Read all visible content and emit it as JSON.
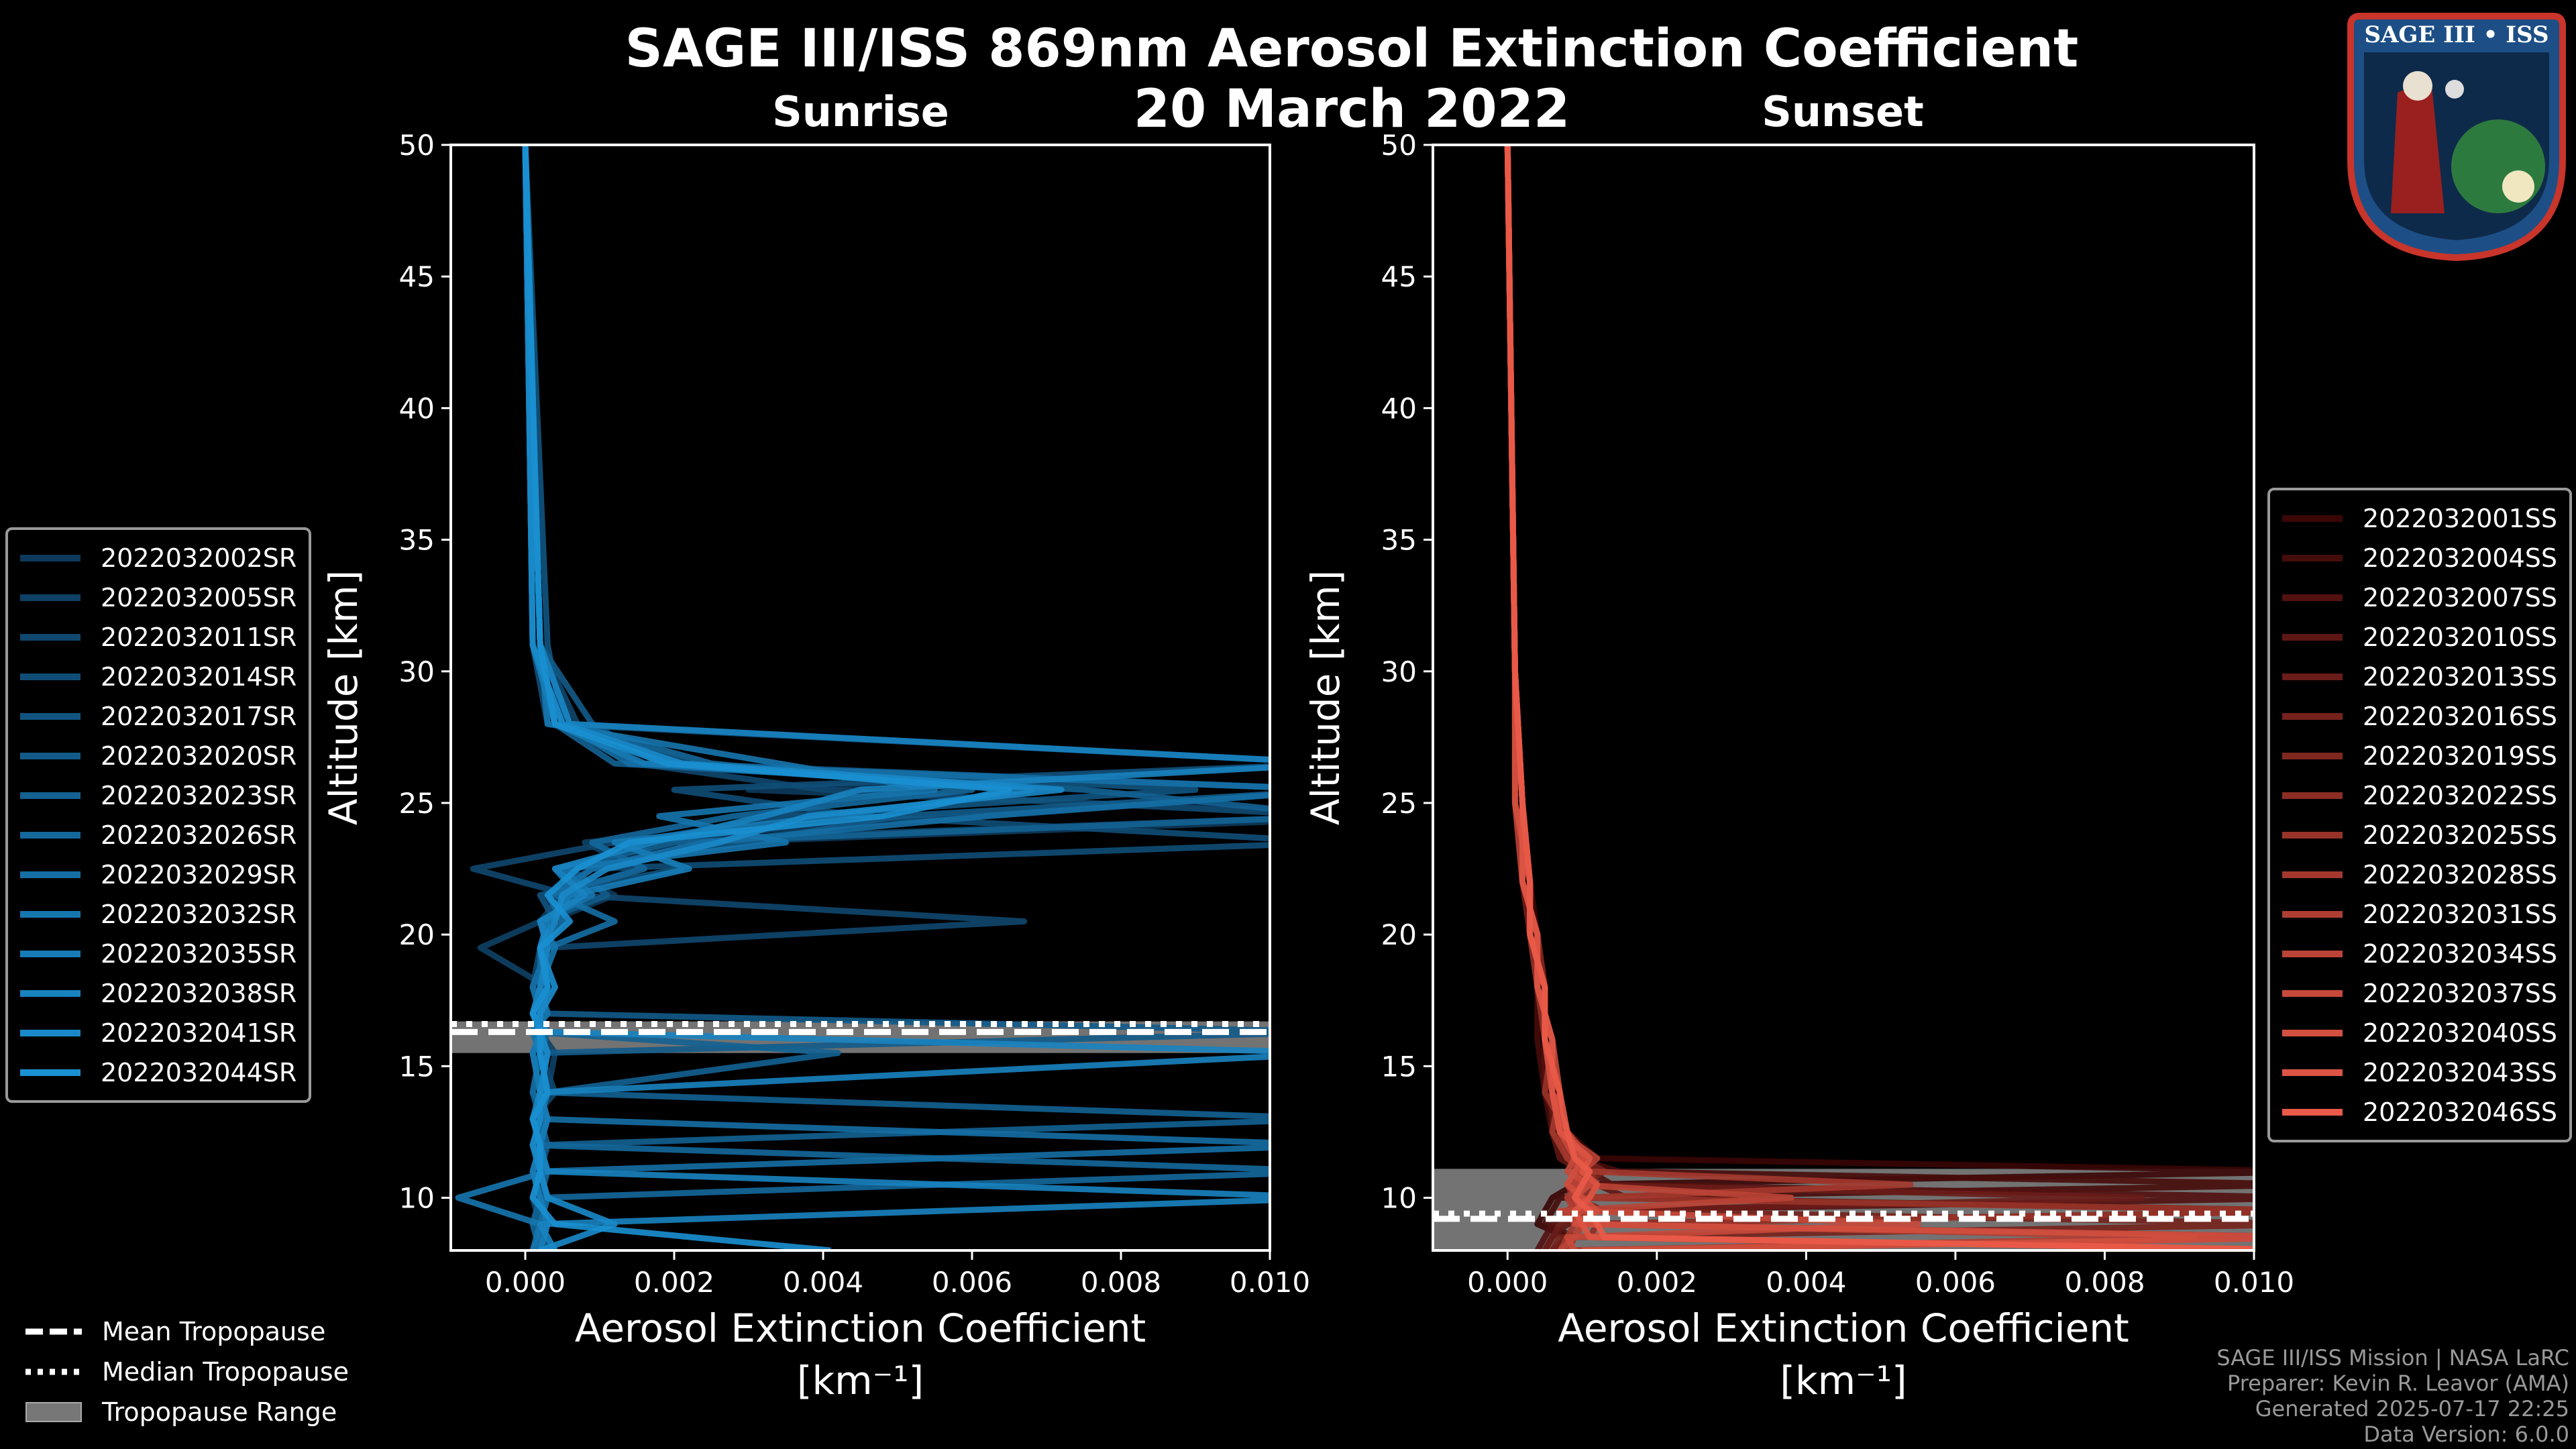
{
  "title_line1": "SAGE III/ISS 869nm Aerosol Extinction Coefficient",
  "title_line2": "20 March 2022",
  "logo_text": "SAGE III • ISS",
  "footer": [
    "SAGE III/ISS Mission | NASA LaRC",
    "Preparer: Kevin R. Leavor (AMA)",
    "Generated 2025-07-17 22:25",
    "Data Version: 6.0.0"
  ],
  "bottom_legend": {
    "mean": "Mean Tropopause",
    "median": "Median Tropopause",
    "range": "Tropopause Range"
  },
  "chart_data": [
    {
      "type": "line",
      "title": "Sunrise",
      "xlabel": "Aerosol Extinction Coefficient",
      "xunits": "[km⁻¹]",
      "ylabel": "Altitude [km]",
      "xlim": [
        -0.001,
        0.01
      ],
      "ylim": [
        8,
        50
      ],
      "xticks": [
        "0.000",
        "0.002",
        "0.004",
        "0.006",
        "0.008",
        "0.010"
      ],
      "xtick_values": [
        0,
        0.002,
        0.004,
        0.006,
        0.008,
        0.01
      ],
      "yticks": [
        10,
        15,
        20,
        25,
        30,
        35,
        40,
        45,
        50
      ],
      "legend_position": "left-outside",
      "color_start": "#0d3a5c",
      "color_end": "#1a90d2",
      "tropopause": {
        "mean": 16.3,
        "median": 16.6,
        "range": [
          15.5,
          16.7
        ]
      },
      "altitudes": [
        50,
        31,
        28,
        26.5,
        25.5,
        24.5,
        23.5,
        22.5,
        21.5,
        20.5,
        19.5,
        18,
        17,
        16.3,
        15.5,
        14,
        13,
        12,
        11,
        10,
        9,
        8
      ],
      "series": [
        {
          "name": "2022032002SR",
          "values": [
            0,
            0.0002,
            0.0006,
            0.011,
            0.003,
            0.012,
            0.0025,
            0.0004,
            0.0012,
            0.0003,
            0.0002,
            0.0004,
            0.0002,
            0.0003,
            0.0001,
            0.0002,
            0.0003,
            0.0002,
            0.0001,
            0.0002,
            0.0003,
            0.0002
          ]
        },
        {
          "name": "2022032005SR",
          "values": [
            0,
            0.0001,
            0.0004,
            0.002,
            0.011,
            0.006,
            0.0008,
            0.0015,
            0.0005,
            0.0002,
            -0.0006,
            0.0003,
            0.0001,
            0.0002,
            0.0004,
            0.0003,
            0.0002,
            0.0001,
            0.0002,
            0.0003,
            0.0001,
            0.0002
          ]
        },
        {
          "name": "2022032011SR",
          "values": [
            0,
            0.0002,
            0.0007,
            0.0015,
            0.004,
            0.011,
            0.0012,
            -0.0007,
            0.0006,
            0.0067,
            0.0003,
            0.0002,
            0.0003,
            0.0001,
            0.0002,
            0.0004,
            0.0001,
            0.0002,
            0.0003,
            0.0001,
            0.0002,
            0.0003
          ]
        },
        {
          "name": "2022032014SR",
          "values": [
            0,
            0.0001,
            0.0003,
            0.011,
            0.002,
            0.0045,
            0.011,
            0.0009,
            0.0003,
            0.0005,
            0.0002,
            0.0001,
            0.0002,
            0.0003,
            0.0002,
            0.0001,
            0.0003,
            0.0002,
            0.0001,
            0.0002,
            0.0001,
            0.0002
          ]
        },
        {
          "name": "2022032017SR",
          "values": [
            0,
            0.0003,
            0.0005,
            0.0022,
            0.009,
            0.0035,
            0.0014,
            0.0021,
            0.0002,
            0.0004,
            0.0003,
            0.0002,
            0.0001,
            0.0003,
            0.0001,
            0.0002,
            0.0002,
            0.0003,
            0.0002,
            0.0001,
            0.0003,
            0.0002
          ]
        },
        {
          "name": "2022032020SR",
          "values": [
            0,
            0.0002,
            0.0009,
            0.0018,
            0.011,
            0.005,
            0.003,
            0.0006,
            0.0011,
            0.0002,
            0.0003,
            0.0001,
            0.0003,
            0.011,
            0.0002,
            0.0001,
            0.0002,
            0.0003,
            0.0001,
            0.0002,
            0.0002,
            0.0003
          ]
        },
        {
          "name": "2022032023SR",
          "values": [
            0,
            0.0001,
            0.0004,
            0.0012,
            0.0075,
            0.011,
            0.002,
            0.0004,
            0.0007,
            0.0003,
            0.0002,
            0.0003,
            0.0002,
            0.0001,
            0.0042,
            0.0003,
            0.011,
            0.0002,
            0.0003,
            0.0002,
            0.0001,
            0.0002
          ]
        },
        {
          "name": "2022032026SR",
          "values": [
            0,
            0.0002,
            0.0006,
            0.0025,
            0.006,
            0.0028,
            0.0009,
            0.0016,
            0.0003,
            0.0005,
            0.0002,
            0.0002,
            0.0001,
            0.0003,
            0.0002,
            0.0001,
            0.0003,
            0.0001,
            0.011,
            0.0002,
            0.0003,
            0.0001
          ]
        },
        {
          "name": "2022032029SR",
          "values": [
            0,
            0.0001,
            0.0005,
            0.0014,
            0.011,
            0.0062,
            0.0024,
            0.0009,
            0.0004,
            0.0012,
            0.0003,
            0.0001,
            0.0002,
            0.0002,
            0.0003,
            0.0002,
            0.0001,
            0.011,
            0.0002,
            0.0003,
            0.0002,
            0.0002
          ]
        },
        {
          "name": "2022032032SR",
          "values": [
            0,
            0.0002,
            0.0003,
            0.0034,
            0.0055,
            0.0018,
            0.0035,
            0.0005,
            0.0009,
            0.0002,
            0.0004,
            0.0002,
            0.0003,
            0.0001,
            0.0002,
            0.0003,
            0.0002,
            0.0001,
            0.0003,
            -0.0009,
            0.0002,
            0.0001
          ]
        },
        {
          "name": "2022032035SR",
          "values": [
            0,
            0.0001,
            0.0004,
            0.0016,
            0.0068,
            0.0041,
            0.0012,
            0.0022,
            0.0006,
            0.0003,
            0.0002,
            0.0003,
            0.0002,
            0.0002,
            0.0001,
            0.0002,
            0.0003,
            0.0002,
            0.0001,
            0.0002,
            0.0003,
            0.0002
          ]
        },
        {
          "name": "2022032038SR",
          "values": [
            0,
            0.0002,
            0.0006,
            0.011,
            0.0045,
            0.0032,
            0.0017,
            0.0004,
            0.0008,
            0.0002,
            0.0003,
            0.0002,
            0.0001,
            0.0003,
            0.011,
            0.0002,
            0.0001,
            0.0002,
            0.0003,
            0.011,
            0.0002,
            0.0004
          ]
        },
        {
          "name": "2022032041SR",
          "values": [
            0,
            0.0001,
            0.0005,
            0.0021,
            0.0072,
            0.0038,
            0.0026,
            0.0011,
            0.0005,
            0.0004,
            0.0002,
            0.0004,
            0.0002,
            0.0002,
            0.0003,
            0.0002,
            0.0002,
            0.0001,
            0.0002,
            0.0003,
            0.0012,
            0.0002
          ]
        },
        {
          "name": "2022032044SR",
          "values": [
            0,
            0.0002,
            0.0004,
            0.0019,
            0.0065,
            0.0048,
            0.0014,
            0.0007,
            0.0003,
            0.0006,
            0.0002,
            0.0003,
            0.0001,
            0.0002,
            0.0002,
            0.0003,
            0.0001,
            0.0002,
            0.0002,
            0.0001,
            0.0004,
            0.0041
          ]
        }
      ]
    },
    {
      "type": "line",
      "title": "Sunset",
      "xlabel": "Aerosol Extinction Coefficient",
      "xunits": "[km⁻¹]",
      "ylabel": "Altitude [km]",
      "xlim": [
        -0.001,
        0.01
      ],
      "ylim": [
        8,
        50
      ],
      "xticks": [
        "0.000",
        "0.002",
        "0.004",
        "0.006",
        "0.008",
        "0.010"
      ],
      "xtick_values": [
        0,
        0.002,
        0.004,
        0.006,
        0.008,
        0.01
      ],
      "yticks": [
        10,
        15,
        20,
        25,
        30,
        35,
        40,
        45,
        50
      ],
      "legend_position": "right-outside",
      "color_start": "#3a0606",
      "color_end": "#ea5a48",
      "tropopause": {
        "mean": 9.2,
        "median": 9.4,
        "range": [
          8,
          11.1
        ]
      },
      "altitudes": [
        50,
        30,
        25,
        22,
        20,
        18,
        16,
        14,
        12.5,
        11.5,
        11,
        10.5,
        10,
        9.5,
        9,
        8.5,
        8
      ],
      "series": [
        {
          "name": "2022032001SS",
          "values": [
            0,
            0.0001,
            0.0002,
            0.0003,
            0.0004,
            0.0005,
            0.0005,
            0.0006,
            0.0008,
            0.0012,
            0.011,
            0.0009,
            0.0006,
            0.0005,
            0.0004,
            0.0008,
            0.0006
          ]
        },
        {
          "name": "2022032004SS",
          "values": [
            0,
            0.0001,
            0.0002,
            0.0002,
            0.0003,
            0.0004,
            0.0004,
            0.0005,
            0.0006,
            0.0009,
            0.0015,
            0.011,
            0.0007,
            0.0006,
            0.0005,
            0.0009,
            0.0007
          ]
        },
        {
          "name": "2022032007SS",
          "values": [
            0,
            0.0001,
            0.0001,
            0.0003,
            0.0003,
            0.0004,
            0.0005,
            0.0005,
            0.0007,
            0.0008,
            0.0011,
            0.0014,
            0.011,
            0.0008,
            0.0006,
            0.0005,
            0.0004
          ]
        },
        {
          "name": "2022032010SS",
          "values": [
            0,
            0.0001,
            0.0002,
            0.0002,
            0.0004,
            0.0004,
            0.0005,
            0.0006,
            0.0006,
            0.0007,
            0.001,
            0.0012,
            0.0016,
            0.011,
            0.0008,
            0.0006,
            0.0005
          ]
        },
        {
          "name": "2022032013SS",
          "values": [
            0,
            0.0001,
            0.0001,
            0.0002,
            0.0003,
            0.0005,
            0.0005,
            0.0006,
            0.0007,
            0.0009,
            0.0012,
            0.0009,
            0.0085,
            0.0011,
            0.0007,
            0.0006,
            0.0005
          ]
        },
        {
          "name": "2022032016SS",
          "values": [
            0,
            0.0001,
            0.0002,
            0.0003,
            0.0003,
            0.0004,
            0.0006,
            0.0006,
            0.0008,
            0.001,
            0.0013,
            0.001,
            0.0009,
            0.0013,
            0.011,
            0.0007,
            0.0006
          ]
        },
        {
          "name": "2022032019SS",
          "values": [
            0,
            0.0001,
            0.0002,
            0.0002,
            0.0004,
            0.0005,
            0.0005,
            0.0007,
            0.0007,
            0.0008,
            0.001,
            0.0009,
            0.0008,
            0.001,
            0.0011,
            0.011,
            0.0007
          ]
        },
        {
          "name": "2022032022SS",
          "values": [
            0,
            0.0001,
            0.0001,
            0.0003,
            0.0003,
            0.0004,
            0.0005,
            0.0006,
            0.0007,
            0.001,
            0.0011,
            0.0012,
            0.001,
            0.0009,
            0.0012,
            0.0011,
            0.011
          ]
        },
        {
          "name": "2022032025SS",
          "values": [
            0,
            0.0001,
            0.0002,
            0.0002,
            0.0004,
            0.0004,
            0.0006,
            0.0005,
            0.0008,
            0.0009,
            0.001,
            0.0008,
            0.0009,
            0.011,
            0.001,
            0.0009,
            0.0008
          ]
        },
        {
          "name": "2022032028SS",
          "values": [
            0,
            0.0001,
            0.0002,
            0.0003,
            0.0003,
            0.0005,
            0.0005,
            0.0007,
            0.0006,
            0.0008,
            0.0011,
            0.0054,
            0.001,
            0.0008,
            0.0009,
            0.0008,
            0.0007
          ]
        },
        {
          "name": "2022032031SS",
          "values": [
            0,
            0.0001,
            0.0001,
            0.0002,
            0.0004,
            0.0004,
            0.0006,
            0.0006,
            0.0008,
            0.0011,
            0.0009,
            0.001,
            0.0008,
            0.0009,
            0.0011,
            0.0092,
            0.0008
          ]
        },
        {
          "name": "2022032034SS",
          "values": [
            0,
            0.0001,
            0.0002,
            0.0003,
            0.0003,
            0.0005,
            0.0005,
            0.0006,
            0.0007,
            0.0012,
            0.001,
            0.0009,
            0.0038,
            0.0007,
            0.001,
            0.0009,
            0.0007
          ]
        },
        {
          "name": "2022032037SS",
          "values": [
            0,
            0.0001,
            0.0002,
            0.0002,
            0.0004,
            0.0004,
            0.0006,
            0.0007,
            0.0007,
            0.0009,
            0.0008,
            0.0011,
            0.0009,
            0.001,
            0.0055,
            0.0008,
            0.0009
          ]
        },
        {
          "name": "2022032040SS",
          "values": [
            0,
            0.0001,
            0.0001,
            0.0003,
            0.0003,
            0.0005,
            0.0005,
            0.0006,
            0.0008,
            0.001,
            0.0009,
            0.0008,
            0.001,
            0.0012,
            0.0009,
            0.011,
            0.001
          ]
        },
        {
          "name": "2022032043SS",
          "values": [
            0,
            0.0001,
            0.0002,
            0.0002,
            0.0004,
            0.0004,
            0.0006,
            0.0006,
            0.0007,
            0.0011,
            0.001,
            0.0012,
            0.0011,
            0.0009,
            0.001,
            0.0011,
            0.011
          ]
        },
        {
          "name": "2022032046SS",
          "values": [
            0,
            0.0001,
            0.0002,
            0.0003,
            0.0003,
            0.0005,
            0.0005,
            0.0007,
            0.0008,
            0.0009,
            0.0011,
            0.001,
            0.0009,
            0.0011,
            0.0012,
            0.0013,
            0.011
          ]
        }
      ]
    }
  ]
}
